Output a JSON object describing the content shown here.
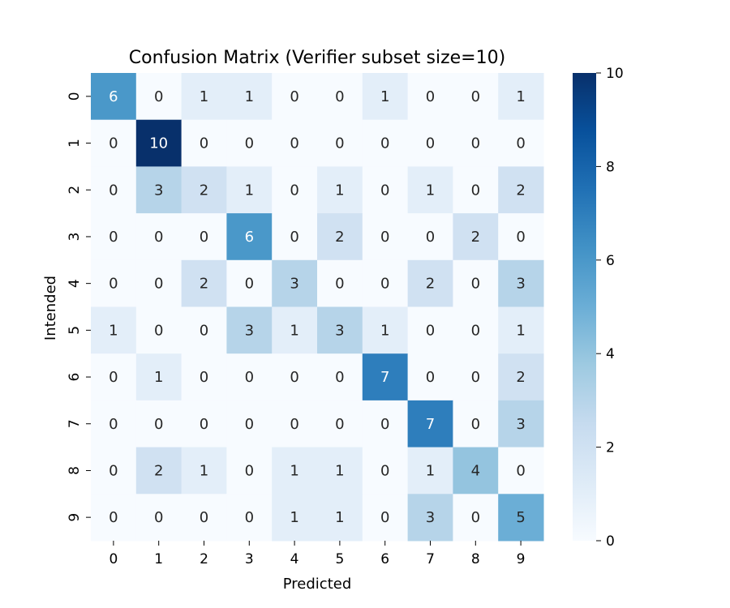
{
  "chart_data": {
    "type": "heatmap",
    "title": "Confusion Matrix (Verifier subset size=10)",
    "xlabel": "Predicted",
    "ylabel": "Intended",
    "x_categories": [
      "0",
      "1",
      "2",
      "3",
      "4",
      "5",
      "6",
      "7",
      "8",
      "9"
    ],
    "y_categories": [
      "0",
      "1",
      "2",
      "3",
      "4",
      "5",
      "6",
      "7",
      "8",
      "9"
    ],
    "values": [
      [
        6,
        0,
        1,
        1,
        0,
        0,
        1,
        0,
        0,
        1
      ],
      [
        0,
        10,
        0,
        0,
        0,
        0,
        0,
        0,
        0,
        0
      ],
      [
        0,
        3,
        2,
        1,
        0,
        1,
        0,
        1,
        0,
        2
      ],
      [
        0,
        0,
        0,
        6,
        0,
        2,
        0,
        0,
        2,
        0
      ],
      [
        0,
        0,
        2,
        0,
        3,
        0,
        0,
        2,
        0,
        3
      ],
      [
        1,
        0,
        0,
        3,
        1,
        3,
        1,
        0,
        0,
        1
      ],
      [
        0,
        1,
        0,
        0,
        0,
        0,
        7,
        0,
        0,
        2
      ],
      [
        0,
        0,
        0,
        0,
        0,
        0,
        0,
        7,
        0,
        3
      ],
      [
        0,
        2,
        1,
        0,
        1,
        1,
        0,
        1,
        4,
        0
      ],
      [
        0,
        0,
        0,
        0,
        1,
        1,
        0,
        3,
        0,
        5
      ]
    ],
    "colorbar": {
      "range": [
        0,
        10
      ],
      "ticks": [
        "0",
        "2",
        "4",
        "6",
        "8",
        "10"
      ],
      "colormap": "Blues",
      "colors": [
        "#f7fbff",
        "#deebf7",
        "#c6dbef",
        "#9ecae1",
        "#6baed6",
        "#4292c6",
        "#2171b5",
        "#08519c",
        "#08306b"
      ]
    },
    "legend": "colorbar-right",
    "grid": false,
    "annotations": "cell values"
  }
}
